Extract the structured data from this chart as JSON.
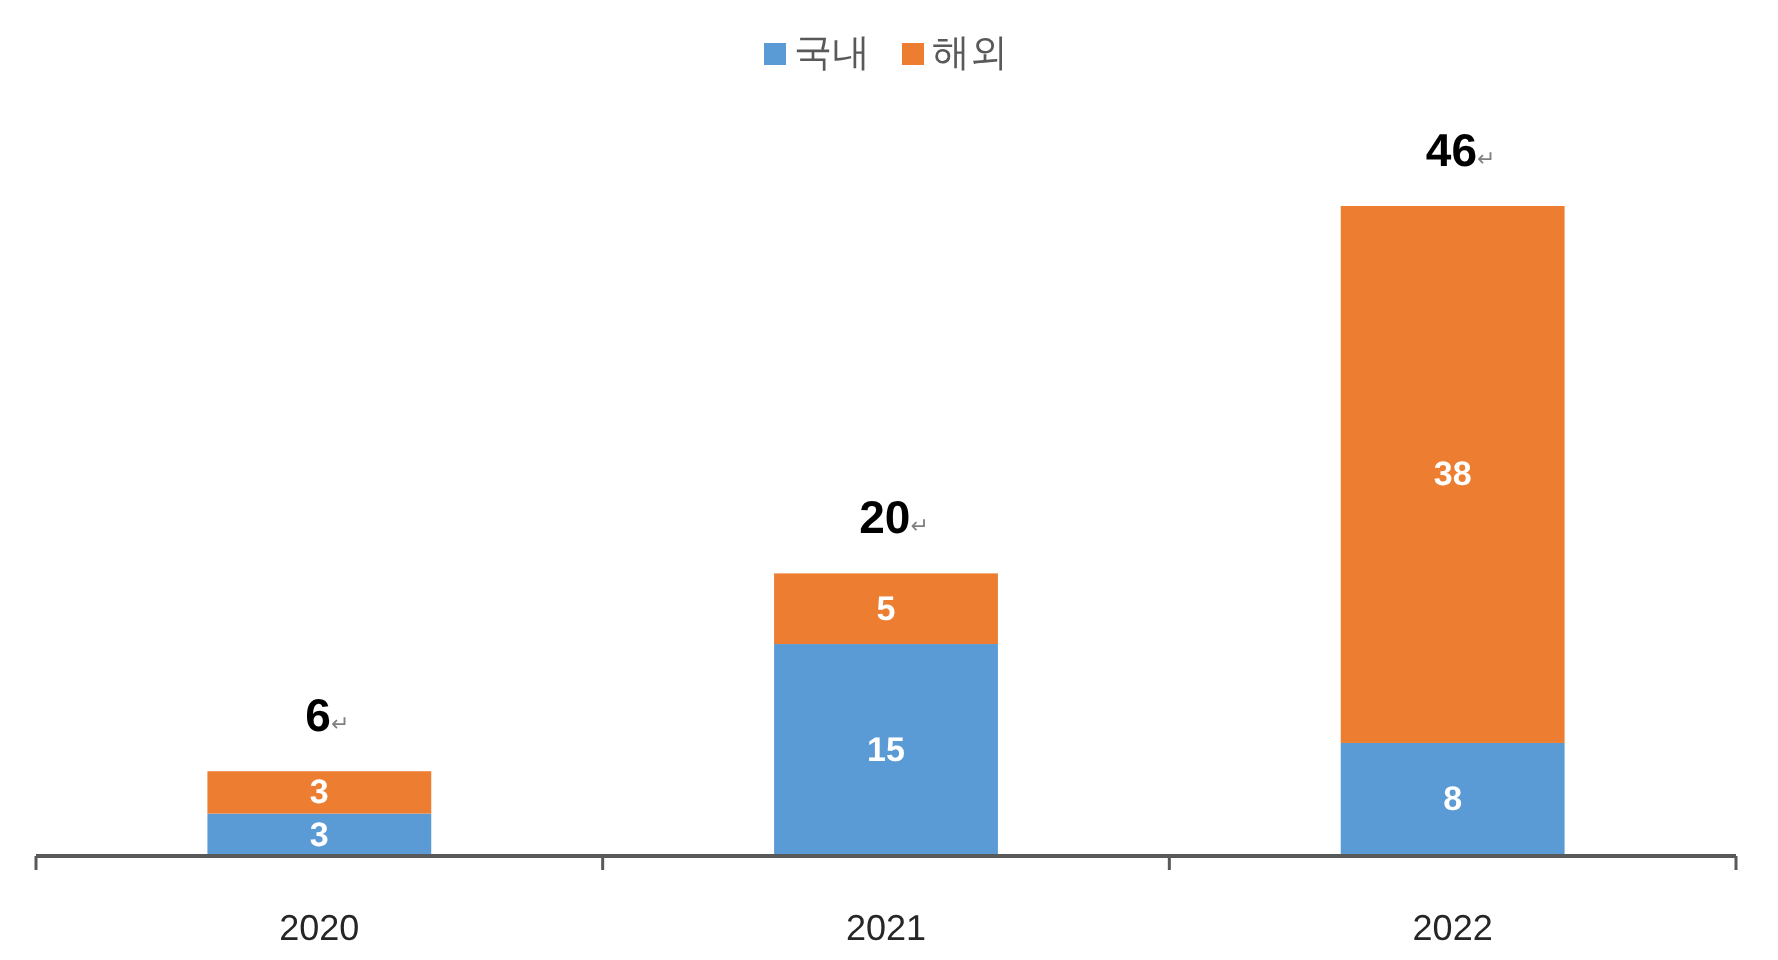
{
  "chart_data": {
    "type": "bar",
    "stacked": true,
    "categories": [
      "2020",
      "2021",
      "2022"
    ],
    "series": [
      {
        "name": "국내",
        "color": "#5b9bd5",
        "values": [
          3,
          15,
          8
        ]
      },
      {
        "name": "해외",
        "color": "#ed7d31",
        "values": [
          3,
          5,
          38
        ]
      }
    ],
    "data_labels": true,
    "totals": [
      "6↵",
      "20↵",
      "46↵"
    ],
    "legend": "top"
  }
}
